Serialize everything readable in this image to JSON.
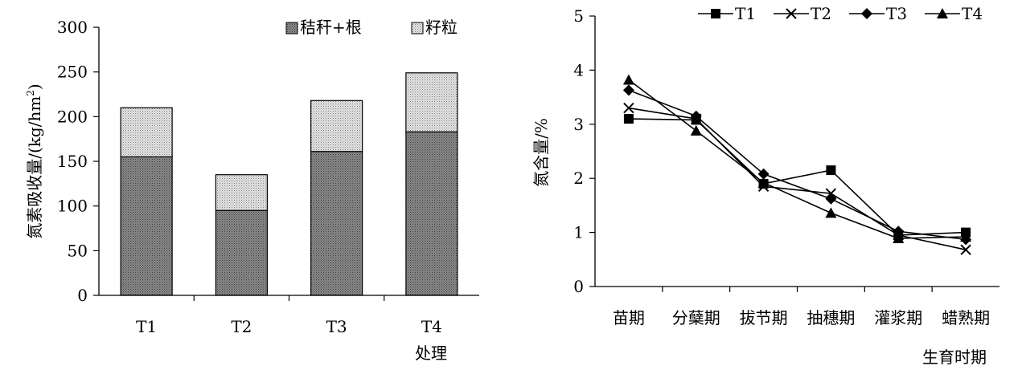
{
  "chart_data": [
    {
      "type": "bar",
      "stacked": true,
      "xlabel": "处理",
      "ylabel": "氮素吸收量/(kg/hm",
      "ylabel_sup": "2",
      "ylabel_close": ")",
      "ylim": [
        0,
        300
      ],
      "yticks": [
        "0",
        "50",
        "100",
        "150",
        "200",
        "250",
        "300"
      ],
      "categories": [
        "T1",
        "T2",
        "T3",
        "T4"
      ],
      "legend_position": "top-right",
      "series": [
        {
          "name": "秸秆+根",
          "values": [
            155,
            95,
            161,
            183
          ],
          "color": "#808080",
          "pattern": "dots-dark"
        },
        {
          "name": "籽粒",
          "values": [
            55,
            40,
            57,
            66
          ],
          "color": "#d0d0d0",
          "pattern": "dots-light"
        }
      ]
    },
    {
      "type": "line",
      "xlabel": "生育时期",
      "ylabel": "氮含量/%",
      "ylim": [
        0,
        5
      ],
      "yticks": [
        "0",
        "1",
        "2",
        "3",
        "4",
        "5"
      ],
      "categories": [
        "苗期",
        "分蘖期",
        "拔节期",
        "抽穗期",
        "灌浆期",
        "蜡熟期"
      ],
      "legend_position": "top",
      "series": [
        {
          "name": "T1",
          "marker": "square",
          "values": [
            3.1,
            3.08,
            1.9,
            2.15,
            0.95,
            1.0
          ]
        },
        {
          "name": "T2",
          "marker": "x",
          "values": [
            3.3,
            3.1,
            1.85,
            1.72,
            0.95,
            0.68
          ]
        },
        {
          "name": "T3",
          "marker": "diamond",
          "values": [
            3.63,
            3.15,
            2.08,
            1.62,
            1.02,
            0.87
          ]
        },
        {
          "name": "T4",
          "marker": "triangle",
          "values": [
            3.82,
            2.88,
            1.92,
            1.36,
            0.89,
            0.92
          ]
        }
      ]
    }
  ]
}
